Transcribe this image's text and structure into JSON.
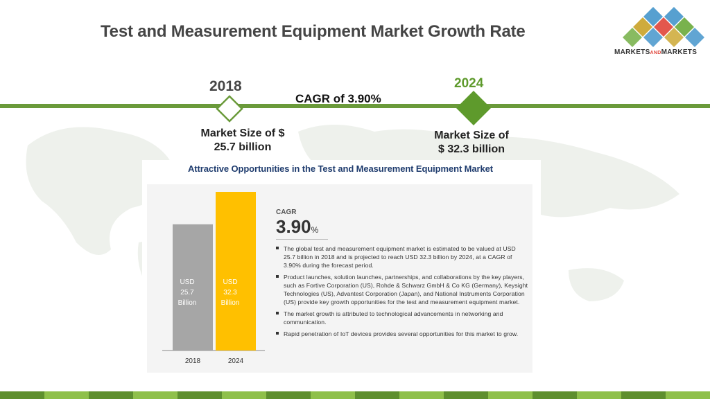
{
  "slide": {
    "title": "Test and Measurement Equipment Market Growth Rate"
  },
  "logo": {
    "text_main": "MARKETS",
    "text_and": "AND",
    "text_end": "MARKETS",
    "colors": [
      "#3a8fc8",
      "#6aaa3a",
      "#e0453a",
      "#c9a227"
    ]
  },
  "timeline": {
    "start_year": "2018",
    "end_year": "2024",
    "cagr_text": "CAGR of 3.90%",
    "start_market_size": [
      "Market Size of $",
      "25.7 billion"
    ],
    "end_market_size": [
      "Market Size of",
      "$ 32.3 billion"
    ]
  },
  "panel": {
    "title": "Attractive Opportunities in the Test and Measurement Equipment Market",
    "cagr_label": "CAGR",
    "cagr_value": "3.90",
    "cagr_unit": "%",
    "bullets": [
      "The global test and measurement equipment market is estimated to be valued at USD 25.7 billion in 2018 and is projected to reach USD 32.3 billion by 2024, at a CAGR of 3.90% during the forecast period.",
      "Product launches, solution launches, partnerships, and collaborations by the key players, such as Fortive Corporation (US), Rohde & Schwarz GmbH & Co KG (Germany), Keysight Technologies (US), Advantest Corporation (Japan), and National Instruments Corporation (US) provide key growth opportunities for the test and measurement equipment market.",
      "The market growth is attributed to technological advancements in networking and communication.",
      "Rapid penetration of IoT devices provides several opportunities for this market to grow."
    ]
  },
  "chart_data": {
    "type": "bar",
    "categories": [
      "2018",
      "2024"
    ],
    "values": [
      25.7,
      32.3
    ],
    "bar_labels": [
      [
        "USD",
        "25.7",
        "Billion"
      ],
      [
        "USD",
        "32.3",
        "Billion"
      ]
    ],
    "colors": [
      "#a6a6a6",
      "#ffc000"
    ],
    "ylim": [
      0,
      32.3
    ],
    "grid": false
  },
  "colors": {
    "accent_green": "#6a9a3a",
    "bright_green": "#5e9a2c",
    "panel_title": "#1f3c6e"
  }
}
